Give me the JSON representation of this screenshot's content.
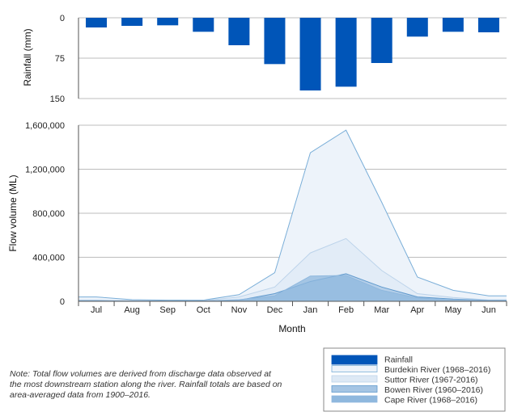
{
  "chart_data": {
    "type": "bar+area",
    "categories": [
      "Jul",
      "Aug",
      "Sep",
      "Oct",
      "Nov",
      "Dec",
      "Jan",
      "Feb",
      "Mar",
      "Apr",
      "May",
      "Jun"
    ],
    "rainfall": {
      "name": "Rainfall",
      "ylabel": "Rainfall (mm)",
      "ylim": [
        0,
        150
      ],
      "ticks": [
        0,
        75,
        150
      ],
      "tick_labels": [
        "0",
        "75",
        "150"
      ],
      "inverted": true,
      "values": [
        18,
        15,
        14,
        26,
        51,
        86,
        135,
        128,
        84,
        35,
        26,
        27
      ],
      "color": "#0055b8"
    },
    "flow": {
      "ylabel": "Flow volume (ML)",
      "ylim": [
        0,
        1600000
      ],
      "ticks": [
        0,
        400000,
        800000,
        1200000,
        1600000
      ],
      "tick_labels": [
        "0",
        "400,000",
        "800,000",
        "1,200,000",
        "1,600,000"
      ],
      "xlabel": "Month",
      "series": [
        {
          "name": "Burdekin River (1968–2016)",
          "fill": "#edf3fa",
          "stroke": "#7aaed8",
          "values": [
            40000,
            15000,
            10000,
            10000,
            60000,
            260000,
            1350000,
            1555000,
            900000,
            220000,
            100000,
            50000
          ]
        },
        {
          "name": "Suttor River (1967-2016)",
          "fill": "#dde9f5",
          "stroke": "#bcd3ea",
          "values": [
            10000,
            5000,
            3000,
            5000,
            40000,
            130000,
            440000,
            570000,
            280000,
            70000,
            35000,
            12000
          ]
        },
        {
          "name": "Bowen River (1960–2016)",
          "fill": "#a5c5e4",
          "stroke": "#5f99cd",
          "values": [
            5000,
            2000,
            2000,
            3000,
            10000,
            70000,
            180000,
            250000,
            130000,
            40000,
            20000,
            8000
          ]
        },
        {
          "name": "Cape River (1968–2016)",
          "fill": "#8fb8de",
          "stroke": "#8fb8de",
          "values": [
            5000,
            2000,
            2000,
            3000,
            15000,
            50000,
            230000,
            235000,
            100000,
            30000,
            15000,
            5000
          ]
        }
      ]
    },
    "legend_position": "bottom-right"
  },
  "note": "Note: Total flow volumes are derived from discharge data observed at the most downstream station along the river. Rainfall totals are based on area-averaged data from 1900–2016."
}
